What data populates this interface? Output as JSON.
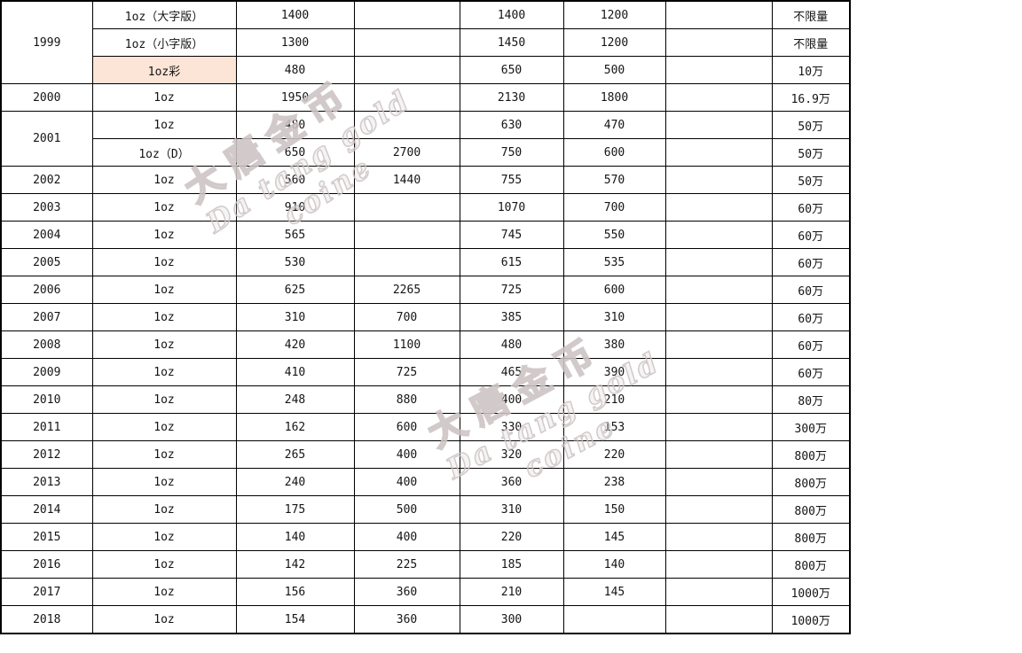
{
  "watermark": {
    "cn": "大唐金币",
    "en": "Da tang gold coine"
  },
  "table": {
    "rows": [
      {
        "year": "1999",
        "span": 3,
        "spec": "1oz（大字版）",
        "hl": false,
        "v": [
          "1400",
          "",
          "1400",
          "1200",
          "",
          "不限量"
        ]
      },
      {
        "spec": "1oz（小字版）",
        "hl": false,
        "v": [
          "1300",
          "",
          "1450",
          "1200",
          "",
          "不限量"
        ]
      },
      {
        "spec": "1oz彩",
        "hl": true,
        "v": [
          "480",
          "",
          "650",
          "500",
          "",
          "10万"
        ]
      },
      {
        "year": "2000",
        "span": 1,
        "spec": "1oz",
        "hl": false,
        "v": [
          "1950",
          "",
          "2130",
          "1800",
          "",
          "16.9万"
        ]
      },
      {
        "year": "2001",
        "span": 2,
        "spec": "1oz",
        "hl": false,
        "v": [
          "480",
          "",
          "630",
          "470",
          "",
          "50万"
        ]
      },
      {
        "spec": "1oz（D）",
        "hl": false,
        "v": [
          "650",
          "2700",
          "750",
          "600",
          "",
          "50万"
        ]
      },
      {
        "year": "2002",
        "span": 1,
        "spec": "1oz",
        "hl": false,
        "v": [
          "560",
          "1440",
          "755",
          "570",
          "",
          "50万"
        ]
      },
      {
        "year": "2003",
        "span": 1,
        "spec": "1oz",
        "hl": false,
        "v": [
          "910",
          "",
          "1070",
          "700",
          "",
          "60万"
        ]
      },
      {
        "year": "2004",
        "span": 1,
        "spec": "1oz",
        "hl": false,
        "v": [
          "565",
          "",
          "745",
          "550",
          "",
          "60万"
        ]
      },
      {
        "year": "2005",
        "span": 1,
        "spec": "1oz",
        "hl": false,
        "v": [
          "530",
          "",
          "615",
          "535",
          "",
          "60万"
        ]
      },
      {
        "year": "2006",
        "span": 1,
        "spec": "1oz",
        "hl": false,
        "v": [
          "625",
          "2265",
          "725",
          "600",
          "",
          "60万"
        ]
      },
      {
        "year": "2007",
        "span": 1,
        "spec": "1oz",
        "hl": false,
        "v": [
          "310",
          "700",
          "385",
          "310",
          "",
          "60万"
        ]
      },
      {
        "year": "2008",
        "span": 1,
        "spec": "1oz",
        "hl": false,
        "v": [
          "420",
          "1100",
          "480",
          "380",
          "",
          "60万"
        ]
      },
      {
        "year": "2009",
        "span": 1,
        "spec": "1oz",
        "hl": false,
        "v": [
          "410",
          "725",
          "465",
          "390",
          "",
          "60万"
        ]
      },
      {
        "year": "2010",
        "span": 1,
        "spec": "1oz",
        "hl": false,
        "v": [
          "248",
          "880",
          "400",
          "210",
          "",
          "80万"
        ]
      },
      {
        "year": "2011",
        "span": 1,
        "spec": "1oz",
        "hl": false,
        "v": [
          "162",
          "600",
          "330",
          "153",
          "",
          "300万"
        ]
      },
      {
        "year": "2012",
        "span": 1,
        "spec": "1oz",
        "hl": false,
        "v": [
          "265",
          "400",
          "320",
          "220",
          "",
          "800万"
        ]
      },
      {
        "year": "2013",
        "span": 1,
        "spec": "1oz",
        "hl": false,
        "v": [
          "240",
          "400",
          "360",
          "238",
          "",
          "800万"
        ]
      },
      {
        "year": "2014",
        "span": 1,
        "spec": "1oz",
        "hl": false,
        "v": [
          "175",
          "500",
          "310",
          "150",
          "",
          "800万"
        ]
      },
      {
        "year": "2015",
        "span": 1,
        "spec": "1oz",
        "hl": false,
        "v": [
          "140",
          "400",
          "220",
          "145",
          "",
          "800万"
        ]
      },
      {
        "year": "2016",
        "span": 1,
        "spec": "1oz",
        "hl": false,
        "v": [
          "142",
          "225",
          "185",
          "140",
          "",
          "800万"
        ]
      },
      {
        "year": "2017",
        "span": 1,
        "spec": "1oz",
        "hl": false,
        "v": [
          "156",
          "360",
          "210",
          "145",
          "",
          "1000万"
        ]
      },
      {
        "year": "2018",
        "span": 1,
        "spec": "1oz",
        "hl": false,
        "v": [
          "154",
          "360",
          "300",
          "",
          "",
          "1000万"
        ]
      }
    ]
  }
}
